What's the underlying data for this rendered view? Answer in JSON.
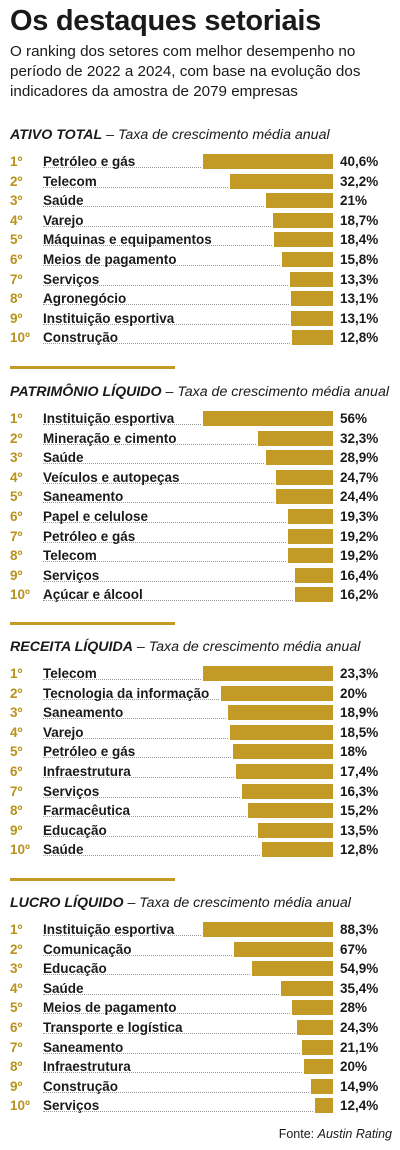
{
  "title": "Os destaques setoriais",
  "subtitle": "O ranking dos setores com melhor desempenho no período de 2022 a 2024, com base na evolução dos indicadores da amostra de 2079 empresas",
  "source_label": "Fonte:",
  "source_name": "Austin Rating",
  "colors": {
    "bar": "#c49a26",
    "rank": "#b8921c",
    "text": "#1a1a1a"
  },
  "chart_data": [
    {
      "type": "bar",
      "title": "ATIVO TOTAL",
      "subtitle": "Taxa de crescimento média anual",
      "ranks": [
        "1º",
        "2º",
        "3º",
        "4º",
        "5º",
        "6º",
        "7º",
        "8º",
        "9º",
        "10º"
      ],
      "categories": [
        "Petróleo e gás",
        "Telecom",
        "Saúde",
        "Varejo",
        "Máquinas e equipamentos",
        "Meios de pagamento",
        "Serviços",
        "Agronegócio",
        "Instituição esportiva",
        "Construção"
      ],
      "values": [
        40.6,
        32.2,
        21,
        18.7,
        18.4,
        15.8,
        13.3,
        13.1,
        13.1,
        12.8
      ],
      "labels": [
        "40,6%",
        "32,2%",
        "21%",
        "18,7%",
        "18,4%",
        "15,8%",
        "13,3%",
        "13,1%",
        "13,1%",
        "12,8%"
      ]
    },
    {
      "type": "bar",
      "title": "PATRIMÔNIO LÍQUIDO",
      "subtitle": "Taxa de crescimento média anual",
      "ranks": [
        "1º",
        "2º",
        "3º",
        "4º",
        "5º",
        "6º",
        "7º",
        "8º",
        "9º",
        "10º"
      ],
      "categories": [
        "Instituição esportiva",
        "Mineração e cimento",
        "Saúde",
        "Veículos e autopeças",
        "Saneamento",
        "Papel e celulose",
        "Petróleo e gás",
        "Telecom",
        "Serviços",
        "Açúcar e álcool"
      ],
      "values": [
        56,
        32.3,
        28.9,
        24.7,
        24.4,
        19.3,
        19.2,
        19.2,
        16.4,
        16.2
      ],
      "labels": [
        "56%",
        "32,3%",
        "28,9%",
        "24,7%",
        "24,4%",
        "19,3%",
        "19,2%",
        "19,2%",
        "16,4%",
        "16,2%"
      ]
    },
    {
      "type": "bar",
      "title": "RECEITA LÍQUIDA",
      "subtitle": "Taxa de crescimento média anual",
      "ranks": [
        "1º",
        "2º",
        "3º",
        "4º",
        "5º",
        "6º",
        "7º",
        "8º",
        "9º",
        "10º"
      ],
      "categories": [
        "Telecom",
        "Tecnologia da informação",
        "Saneamento",
        "Varejo",
        "Petróleo e gás",
        "Infraestrutura",
        "Serviços",
        "Farmacêutica",
        "Educação",
        "Saúde"
      ],
      "values": [
        23.3,
        20,
        18.9,
        18.5,
        18,
        17.4,
        16.3,
        15.2,
        13.5,
        12.8
      ],
      "labels": [
        "23,3%",
        "20%",
        "18,9%",
        "18,5%",
        "18%",
        "17,4%",
        "16,3%",
        "15,2%",
        "13,5%",
        "12,8%"
      ]
    },
    {
      "type": "bar",
      "title": "LUCRO LÍQUIDO",
      "subtitle": "Taxa de crescimento média anual",
      "ranks": [
        "1º",
        "2º",
        "3º",
        "4º",
        "5º",
        "6º",
        "7º",
        "8º",
        "9º",
        "10º"
      ],
      "categories": [
        "Instituição esportiva",
        "Comunicação",
        "Educação",
        "Saúde",
        "Meios de pagamento",
        "Transporte e logística",
        "Saneamento",
        "Infraestrutura",
        "Construção",
        "Serviços"
      ],
      "values": [
        88.3,
        67,
        54.9,
        35.4,
        28,
        24.3,
        21.1,
        20,
        14.9,
        12.4
      ],
      "labels": [
        "88,3%",
        "67%",
        "54,9%",
        "35,4%",
        "28%",
        "24,3%",
        "21,1%",
        "20%",
        "14,9%",
        "12,4%"
      ]
    }
  ]
}
